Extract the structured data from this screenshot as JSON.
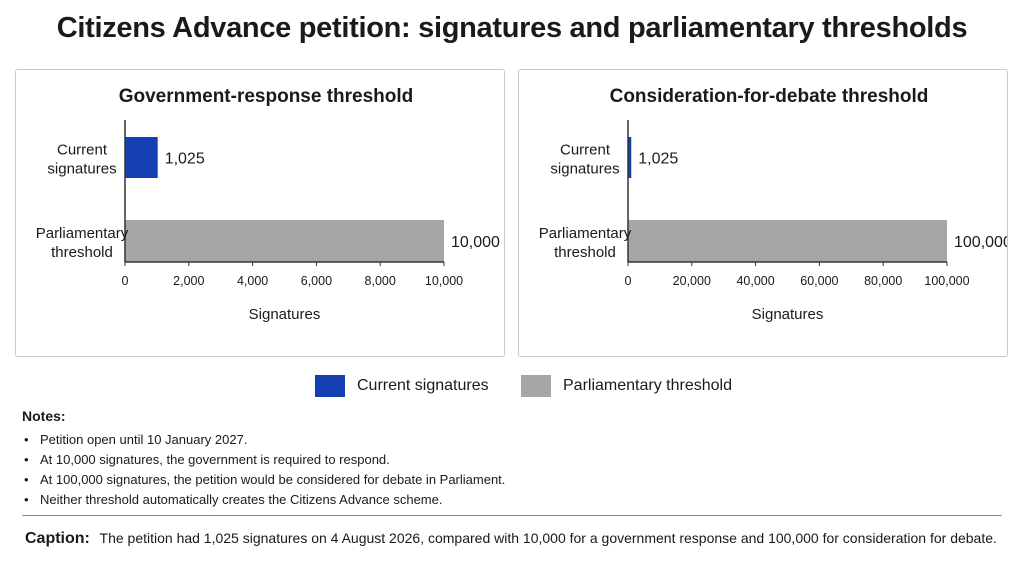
{
  "title": "Citizens Advance petition: signatures and parliamentary thresholds",
  "colors": {
    "current": "#1440b4",
    "threshold": "#a6a6a6",
    "axis": "#333333",
    "text": "#1a1a1a"
  },
  "chart_data": [
    {
      "type": "bar",
      "orientation": "horizontal",
      "title": "Government-response threshold",
      "categories": [
        "Current signatures",
        "Parliamentary threshold"
      ],
      "category_lines": [
        [
          "Current",
          "signatures"
        ],
        [
          "Parliamentary",
          "threshold"
        ]
      ],
      "values": [
        1025,
        10000
      ],
      "value_labels": [
        "1,025",
        "10,000"
      ],
      "bar_colors": [
        "#1440b4",
        "#a6a6a6"
      ],
      "xlabel": "Signatures",
      "xlim": [
        0,
        10000
      ],
      "xticks": [
        0,
        2000,
        4000,
        6000,
        8000,
        10000
      ],
      "xtick_labels": [
        "0",
        "2,000",
        "4,000",
        "6,000",
        "8,000",
        "10,000"
      ],
      "grid": false
    },
    {
      "type": "bar",
      "orientation": "horizontal",
      "title": "Consideration-for-debate threshold",
      "categories": [
        "Current signatures",
        "Parliamentary threshold"
      ],
      "category_lines": [
        [
          "Current",
          "signatures"
        ],
        [
          "Parliamentary",
          "threshold"
        ]
      ],
      "values": [
        1025,
        100000
      ],
      "value_labels": [
        "1,025",
        "100,000"
      ],
      "bar_colors": [
        "#1440b4",
        "#a6a6a6"
      ],
      "xlabel": "Signatures",
      "xlim": [
        0,
        100000
      ],
      "xticks": [
        0,
        20000,
        40000,
        60000,
        80000,
        100000
      ],
      "xtick_labels": [
        "0",
        "20,000",
        "40,000",
        "60,000",
        "80,000",
        "100,000"
      ],
      "grid": false
    }
  ],
  "legend": {
    "items": [
      {
        "label": "Current signatures",
        "color": "#1440b4"
      },
      {
        "label": "Parliamentary threshold",
        "color": "#a6a6a6"
      }
    ],
    "position": "bottom-center"
  },
  "notes": {
    "title": "Notes:",
    "items": [
      "Petition open until 10 January 2027.",
      "At 10,000 signatures, the government is required to respond.",
      "At 100,000 signatures, the petition would be considered for debate in Parliament.",
      "Neither threshold automatically creates the Citizens Advance scheme."
    ]
  },
  "caption": {
    "label": "Caption:",
    "text": "The petition had 1,025 signatures on 4 August 2026, compared with 10,000 for a government response and 100,000 for consideration for debate."
  }
}
